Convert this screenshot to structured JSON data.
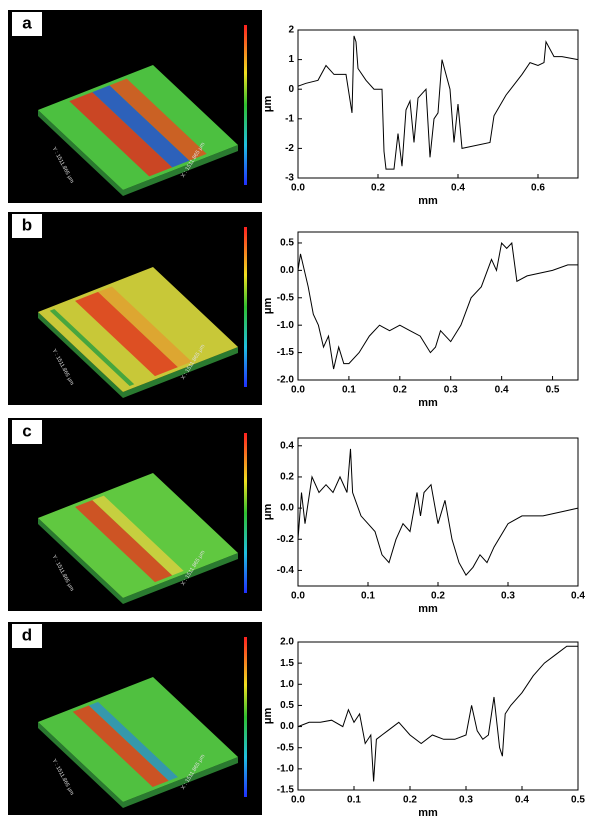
{
  "chart_data": [
    {
      "type": "line",
      "panel_label": "a",
      "surface_labels": [
        "Y : 1511.865 μm",
        "X : 1511.865 μm"
      ],
      "surface": "a",
      "xlabel": "mm",
      "ylabel": "μm",
      "x": [
        0,
        0.02,
        0.05,
        0.07,
        0.09,
        0.12,
        0.135,
        0.14,
        0.145,
        0.15,
        0.17,
        0.19,
        0.21,
        0.215,
        0.22,
        0.24,
        0.25,
        0.26,
        0.27,
        0.28,
        0.29,
        0.3,
        0.32,
        0.33,
        0.34,
        0.35,
        0.36,
        0.38,
        0.39,
        0.4,
        0.41,
        0.48,
        0.49,
        0.52,
        0.56,
        0.58,
        0.6,
        0.615,
        0.62,
        0.64,
        0.66,
        0.7
      ],
      "series": [
        {
          "color": "#000000",
          "values": [
            0.1,
            0.2,
            0.3,
            0.8,
            0.5,
            0.5,
            -0.8,
            1.8,
            1.6,
            0.7,
            0.3,
            0,
            0,
            -2.1,
            -2.7,
            -2.7,
            -1.5,
            -2.6,
            -0.7,
            -0.4,
            -1.8,
            -0.3,
            0,
            -2.3,
            -1,
            -0.8,
            1,
            0,
            -1.8,
            -0.5,
            -2,
            -1.8,
            -0.9,
            -0.2,
            0.5,
            0.9,
            0.8,
            0.9,
            1.6,
            1.1,
            1.1,
            1.0
          ]
        }
      ],
      "xlim": [
        0,
        0.7
      ],
      "ylim": [
        -3,
        2
      ],
      "xticks": [
        {
          "value": 0,
          "label": "0.0"
        },
        0.2,
        0.4,
        0.6
      ],
      "yticks": [
        -3,
        -2,
        -1,
        0,
        1,
        2
      ]
    },
    {
      "type": "line",
      "panel_label": "b",
      "surface_labels": [
        "Y : 1511.865 μm",
        "X : 1511.865 μm"
      ],
      "surface": "b",
      "xlabel": "mm",
      "ylabel": "μm",
      "x": [
        0,
        0.005,
        0.02,
        0.03,
        0.04,
        0.05,
        0.06,
        0.07,
        0.08,
        0.09,
        0.1,
        0.12,
        0.14,
        0.16,
        0.18,
        0.2,
        0.22,
        0.24,
        0.26,
        0.27,
        0.28,
        0.3,
        0.32,
        0.34,
        0.36,
        0.38,
        0.39,
        0.4,
        0.41,
        0.42,
        0.43,
        0.45,
        0.5,
        0.53,
        0.55
      ],
      "series": [
        {
          "color": "#000000",
          "values": [
            0,
            0.3,
            -0.3,
            -0.8,
            -1,
            -1.4,
            -1.2,
            -1.8,
            -1.4,
            -1.7,
            -1.7,
            -1.5,
            -1.2,
            -1,
            -1.1,
            -1,
            -1.1,
            -1.2,
            -1.5,
            -1.4,
            -1.1,
            -1.3,
            -1.0,
            -0.5,
            -0.3,
            0.2,
            0,
            0.5,
            0.4,
            0.5,
            -0.2,
            -0.1,
            0.0,
            0.1,
            0.1
          ]
        }
      ],
      "xlim": [
        0,
        0.55
      ],
      "ylim": [
        -2,
        0.7
      ],
      "xticks": [
        {
          "value": 0,
          "label": "0.0"
        },
        0.1,
        0.2,
        0.3,
        0.4,
        0.5
      ],
      "yticks": [
        {
          "value": -2,
          "label": "-2.0"
        },
        -1.5,
        {
          "value": -1,
          "label": "-1.0"
        },
        -0.5,
        {
          "value": 0,
          "label": "0.0"
        },
        0.5
      ]
    },
    {
      "type": "line",
      "panel_label": "c",
      "surface_labels": [
        "Y : 1511.865 μm",
        "X : 1511.865 μm"
      ],
      "surface": "c",
      "xlabel": "mm",
      "ylabel": "μm",
      "x": [
        0,
        0.005,
        0.01,
        0.02,
        0.03,
        0.04,
        0.05,
        0.06,
        0.07,
        0.075,
        0.078,
        0.09,
        0.1,
        0.11,
        0.12,
        0.13,
        0.14,
        0.15,
        0.16,
        0.17,
        0.175,
        0.18,
        0.19,
        0.2,
        0.21,
        0.22,
        0.23,
        0.24,
        0.25,
        0.26,
        0.27,
        0.28,
        0.3,
        0.32,
        0.35,
        0.38,
        0.4
      ],
      "series": [
        {
          "color": "#000000",
          "values": [
            -0.2,
            0.1,
            -0.1,
            0.2,
            0.1,
            0.15,
            0.1,
            0.2,
            0.1,
            0.38,
            0.1,
            -0.05,
            -0.1,
            -0.15,
            -0.3,
            -0.35,
            -0.2,
            -0.1,
            -0.15,
            0.1,
            -0.05,
            0.1,
            0.15,
            -0.1,
            0.05,
            -0.2,
            -0.35,
            -0.43,
            -0.38,
            -0.3,
            -0.35,
            -0.25,
            -0.1,
            -0.05,
            -0.05,
            -0.02,
            0
          ]
        }
      ],
      "xlim": [
        0,
        0.4
      ],
      "ylim": [
        -0.5,
        0.45
      ],
      "xticks": [
        {
          "value": 0,
          "label": "0.0"
        },
        0.1,
        0.2,
        0.3,
        0.4
      ],
      "yticks": [
        -0.4,
        -0.2,
        {
          "value": 0,
          "label": "0.0"
        },
        0.2,
        0.4
      ]
    },
    {
      "type": "line",
      "panel_label": "d",
      "surface_labels": [
        "Y : 1511.865 μm",
        "X : 1511.865 μm"
      ],
      "surface": "d",
      "xlabel": "mm",
      "ylabel": "μm",
      "x": [
        0,
        0.02,
        0.04,
        0.06,
        0.08,
        0.09,
        0.1,
        0.11,
        0.12,
        0.13,
        0.135,
        0.14,
        0.15,
        0.16,
        0.18,
        0.2,
        0.22,
        0.24,
        0.26,
        0.28,
        0.3,
        0.31,
        0.32,
        0.33,
        0.34,
        0.35,
        0.36,
        0.365,
        0.37,
        0.38,
        0.4,
        0.42,
        0.44,
        0.46,
        0.48,
        0.5
      ],
      "series": [
        {
          "color": "#000000",
          "values": [
            0,
            0.1,
            0.1,
            0.15,
            0,
            0.4,
            0.1,
            0.3,
            -0.4,
            -0.2,
            -1.3,
            -0.3,
            -0.2,
            -0.1,
            0.1,
            -0.2,
            -0.4,
            -0.2,
            -0.3,
            -0.3,
            -0.2,
            0.5,
            -0.1,
            -0.3,
            -0.2,
            0.7,
            -0.5,
            -0.7,
            0.3,
            0.5,
            0.8,
            1.2,
            1.5,
            1.7,
            1.9,
            1.9
          ]
        }
      ],
      "xlim": [
        0,
        0.5
      ],
      "ylim": [
        -1.5,
        2
      ],
      "xticks": [
        {
          "value": 0,
          "label": "0.0"
        },
        0.1,
        0.2,
        0.3,
        0.4,
        0.5
      ],
      "yticks": [
        -1.5,
        {
          "value": -1,
          "label": "-1.0"
        },
        -0.5,
        {
          "value": 0,
          "label": "0.0"
        },
        0.5,
        {
          "value": 1,
          "label": "1.0"
        },
        1.5,
        {
          "value": 2,
          "label": "2.0"
        }
      ]
    }
  ]
}
